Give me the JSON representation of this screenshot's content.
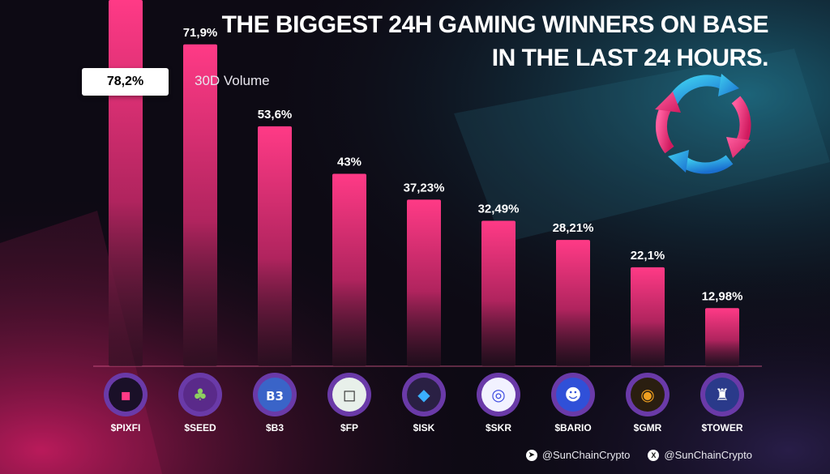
{
  "title": {
    "line1": "THE BIGGEST 24H GAMING WINNERS ON BASE",
    "line2": "IN THE LAST 24 HOURS."
  },
  "legend": {
    "label": "30D Volume"
  },
  "colors": {
    "bar_top": "#ff3a86",
    "bar_bottom": "#2a1020",
    "background": "#0d0a14"
  },
  "footer": {
    "telegram": "@SunChainCrypto",
    "x": "@SunChainCrypto"
  },
  "chart_data": {
    "type": "bar",
    "categories": [
      "$PIXFI",
      "$SEED",
      "$B3",
      "$FP",
      "$ISK",
      "$SKR",
      "$BARIO",
      "$GMR",
      "$TOWER"
    ],
    "value_labels": [
      "78,2%",
      "71,9%",
      "53,6%",
      "43%",
      "37,23%",
      "32,49%",
      "28,21%",
      "22,1%",
      "12,98%"
    ],
    "series": [
      {
        "name": "30D Volume",
        "values": [
          78.2,
          71.9,
          53.6,
          43,
          37.23,
          32.49,
          28.21,
          22.1,
          12.98
        ]
      }
    ],
    "icons": [
      "pixfi-logo-icon",
      "seed-plant-icon",
      "b3-logo-icon",
      "fp-logo-icon",
      "isk-logo-icon",
      "skr-logo-icon",
      "bario-logo-icon",
      "gmr-logo-icon",
      "tower-logo-icon"
    ],
    "grid": false,
    "legend_placement": "top-left"
  }
}
